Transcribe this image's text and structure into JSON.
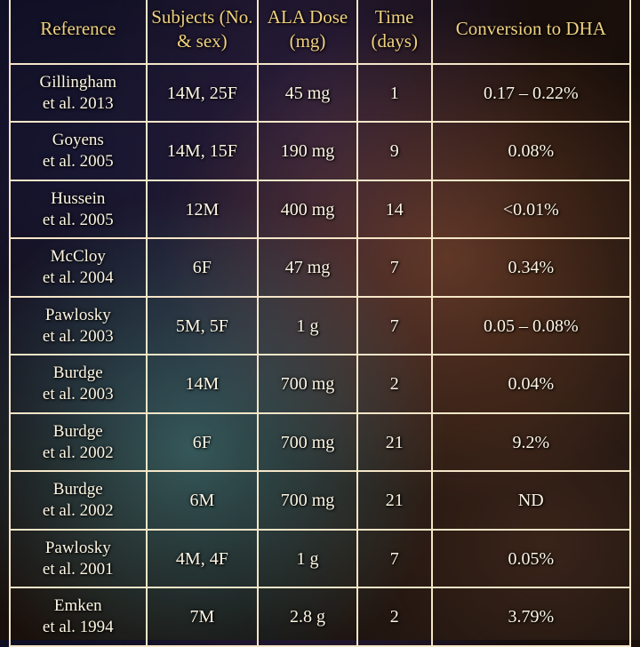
{
  "table": {
    "headers": {
      "reference": "Reference",
      "subjects": "Subjects (No. & sex)",
      "dose": "ALA Dose (mg)",
      "time": "Time (days)",
      "conversion": "Conversion to DHA"
    },
    "rows": [
      {
        "ref": "Gillingham et al. 2013",
        "subjects": "14M, 25F",
        "dose": "45 mg",
        "time": "1",
        "conversion": "0.17 – 0.22%"
      },
      {
        "ref": "Goyens et al. 2005",
        "subjects": "14M, 15F",
        "dose": "190 mg",
        "time": "9",
        "conversion": "0.08%"
      },
      {
        "ref": "Hussein et al. 2005",
        "subjects": "12M",
        "dose": "400 mg",
        "time": "14",
        "conversion": "<0.01%"
      },
      {
        "ref": "McCloy et al. 2004",
        "subjects": "6F",
        "dose": "47 mg",
        "time": "7",
        "conversion": "0.34%"
      },
      {
        "ref": "Pawlosky et al. 2003",
        "subjects": "5M, 5F",
        "dose": "1 g",
        "time": "7",
        "conversion": "0.05 – 0.08%"
      },
      {
        "ref": "Burdge et al. 2003",
        "subjects": "14M",
        "dose": "700 mg",
        "time": "2",
        "conversion": "0.04%"
      },
      {
        "ref": "Burdge et al. 2002",
        "subjects": "6F",
        "dose": "700 mg",
        "time": "21",
        "conversion": "9.2%"
      },
      {
        "ref": "Burdge et al. 2002",
        "subjects": "6M",
        "dose": "700 mg",
        "time": "21",
        "conversion": "ND"
      },
      {
        "ref": "Pawlosky et al. 2001",
        "subjects": "4M, 4F",
        "dose": "1 g",
        "time": "7",
        "conversion": "0.05%"
      },
      {
        "ref": "Emken et al. 1994",
        "subjects": "7M",
        "dose": "2.8 g",
        "time": "2",
        "conversion": "3.79%"
      }
    ],
    "colors": {
      "border": "#f5e6c8",
      "header_text": "#f0d080",
      "body_text": "#fdf6e3"
    },
    "font": {
      "family": "handwritten",
      "header_size_pt": 16,
      "body_size_pt": 15
    }
  }
}
